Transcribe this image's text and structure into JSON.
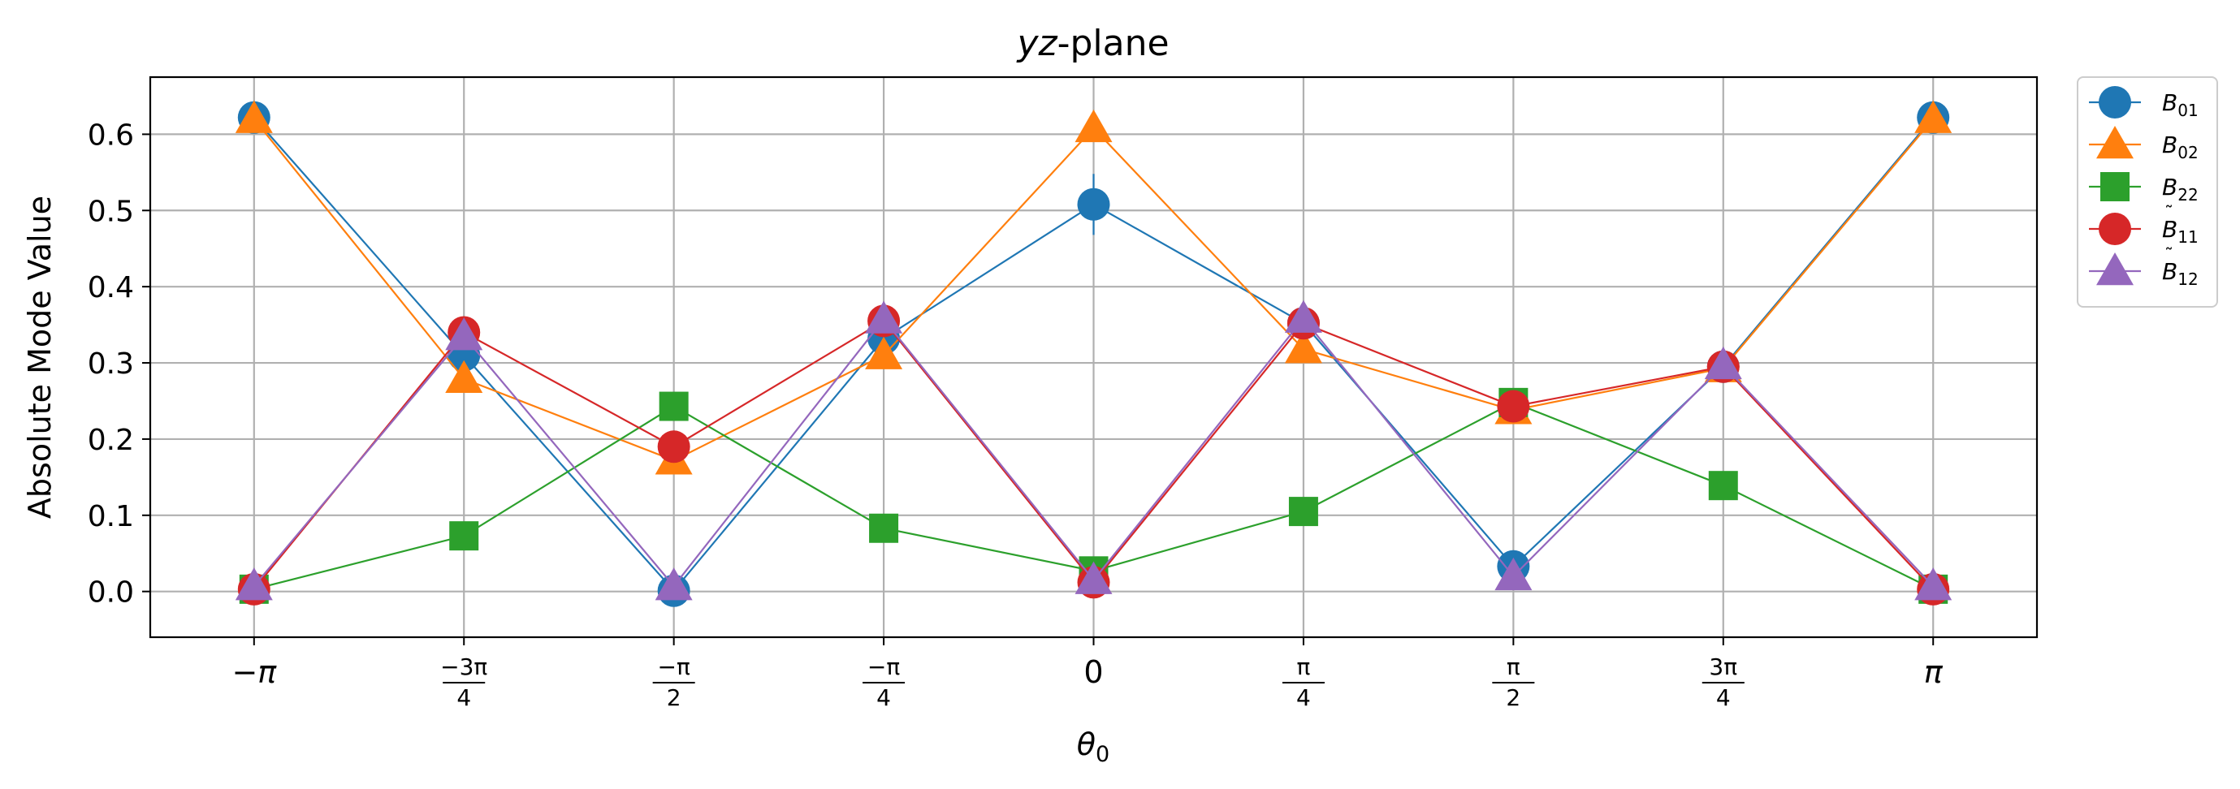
{
  "chart_data": {
    "type": "line",
    "title_italic": "yz",
    "title_rest": "-plane",
    "xlabel_main": "θ",
    "xlabel_sub": "0",
    "ylabel": "Absolute Mode Value",
    "x": [
      -3.14159,
      -2.35619,
      -1.5708,
      -0.785398,
      0,
      0.785398,
      1.5708,
      2.35619,
      3.14159
    ],
    "xticks": [
      {
        "kind": "text",
        "text": "−π"
      },
      {
        "kind": "frac",
        "num": "−3π",
        "den": "4"
      },
      {
        "kind": "frac",
        "num": "−π",
        "den": "2"
      },
      {
        "kind": "frac",
        "num": "−π",
        "den": "4"
      },
      {
        "kind": "text",
        "text": "0"
      },
      {
        "kind": "frac",
        "num": "π",
        "den": "4"
      },
      {
        "kind": "frac",
        "num": "π",
        "den": "2"
      },
      {
        "kind": "frac",
        "num": "3π",
        "den": "4"
      },
      {
        "kind": "text",
        "text": "π"
      }
    ],
    "yticks": [
      "0.0",
      "0.1",
      "0.2",
      "0.3",
      "0.4",
      "0.5",
      "0.6"
    ],
    "ytick_values": [
      0,
      0.1,
      0.2,
      0.3,
      0.4,
      0.5,
      0.6
    ],
    "ylim": [
      -0.06,
      0.675
    ],
    "xlim": [
      -3.53,
      3.53
    ],
    "grid": true,
    "legend_placement": "outside-top-right",
    "series": [
      {
        "name_base": "B",
        "tilde": false,
        "name_sub": "01",
        "color": "#1f77b4",
        "marker": "circle",
        "values": [
          0.622,
          0.31,
          0.001,
          0.332,
          0.508,
          0.352,
          0.033,
          0.295,
          0.622
        ],
        "errors": [
          0,
          0,
          0,
          0,
          0.04,
          0,
          0,
          0,
          0
        ]
      },
      {
        "name_base": "B",
        "tilde": false,
        "name_sub": "02",
        "color": "#ff7f0e",
        "marker": "triangle",
        "values": [
          0.62,
          0.279,
          0.172,
          0.31,
          0.608,
          0.318,
          0.238,
          0.293,
          0.62
        ],
        "errors": [
          0,
          0,
          0,
          0,
          0,
          0,
          0,
          0,
          0
        ]
      },
      {
        "name_base": "B",
        "tilde": false,
        "name_sub": "22",
        "color": "#2ca02c",
        "marker": "square",
        "values": [
          0.003,
          0.073,
          0.243,
          0.083,
          0.027,
          0.105,
          0.248,
          0.139,
          0.003
        ],
        "errors": [
          0,
          0,
          0,
          0,
          0,
          0,
          0,
          0,
          0
        ]
      },
      {
        "name_base": "B",
        "tilde": true,
        "name_sub": "11",
        "color": "#d62728",
        "marker": "circle",
        "values": [
          0.003,
          0.34,
          0.19,
          0.355,
          0.012,
          0.352,
          0.243,
          0.295,
          0.003
        ],
        "errors": [
          0,
          0,
          0,
          0,
          0,
          0,
          0,
          0,
          0
        ]
      },
      {
        "name_base": "B",
        "tilde": true,
        "name_sub": "12",
        "color": "#9467bd",
        "marker": "triangle",
        "values": [
          0.007,
          0.335,
          0.007,
          0.357,
          0.015,
          0.358,
          0.02,
          0.297,
          0.007
        ],
        "errors": [
          0,
          0,
          0,
          0,
          0,
          0,
          0,
          0,
          0
        ]
      }
    ]
  }
}
